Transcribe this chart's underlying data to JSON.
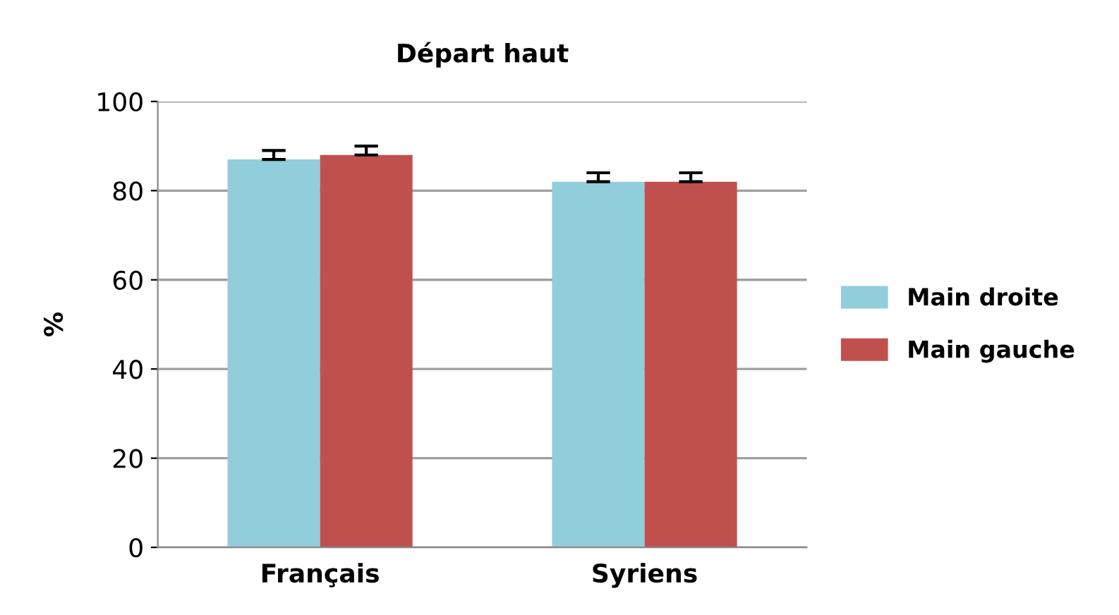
{
  "chart_data": {
    "type": "bar",
    "title": "Départ haut",
    "ylabel": "%",
    "categories": [
      "Français",
      "Syriens"
    ],
    "series": [
      {
        "name": "Main droite",
        "color": "#92cddc",
        "values": [
          87,
          82
        ],
        "errors": [
          [
            87,
            89
          ],
          [
            82,
            84
          ]
        ]
      },
      {
        "name": "Main gauche",
        "color": "#c0504d",
        "values": [
          88,
          82
        ],
        "errors": [
          [
            88,
            90
          ],
          [
            82,
            84
          ]
        ]
      }
    ],
    "ylim": [
      0,
      100
    ],
    "yticks": [
      0,
      20,
      40,
      60,
      80,
      100
    ],
    "grid": "y",
    "legend": "right"
  }
}
